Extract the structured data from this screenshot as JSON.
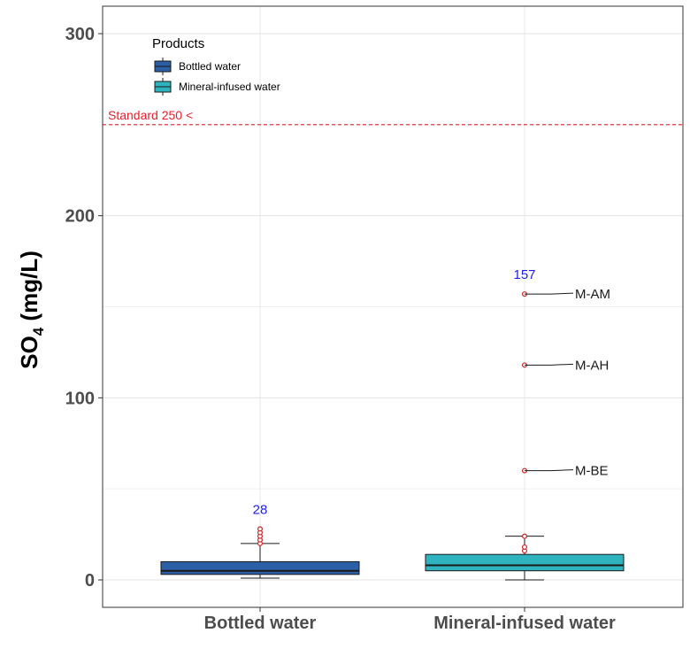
{
  "chart_data": {
    "type": "boxplot",
    "ylabel_main": "SO",
    "ylabel_sub": "4",
    "ylabel_unit": " (mg/L)",
    "ylim": [
      -15,
      315
    ],
    "y_ticks": [
      0,
      100,
      200,
      300
    ],
    "grid": true,
    "categories": [
      "Bottled water",
      "Mineral-infused water"
    ],
    "legend": {
      "title": "Products",
      "position": "top-left",
      "entries": [
        "Bottled water",
        "Mineral-infused water"
      ]
    },
    "series": [
      {
        "name": "Bottled water",
        "color": "#2b5fa6",
        "whisker_low": 1,
        "q1": 3,
        "median": 5,
        "q3": 10,
        "whisker_high": 20,
        "outliers": [
          20,
          22,
          24,
          26,
          28
        ],
        "max_label": "28"
      },
      {
        "name": "Mineral-infused water",
        "color": "#2fb4bf",
        "whisker_low": 0,
        "q1": 5,
        "median": 8,
        "q3": 14,
        "whisker_high": 24,
        "outliers": [
          16,
          18,
          24,
          60,
          118,
          157
        ],
        "max_label": "157"
      }
    ],
    "annotations": [
      {
        "text": "M-AM",
        "value": 157,
        "series": 1
      },
      {
        "text": "M-AH",
        "value": 118,
        "series": 1
      },
      {
        "text": "M-BE",
        "value": 60,
        "series": 1
      }
    ],
    "reference_line": {
      "value": 250,
      "label": "Standard 250 <",
      "color": "#e8202a"
    },
    "max_label_color": "#1f1fe6",
    "outlier_color": "#cc2222"
  }
}
